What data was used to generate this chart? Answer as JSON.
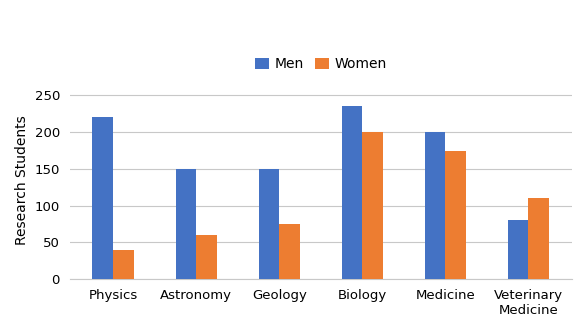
{
  "categories": [
    "Physics",
    "Astronomy",
    "Geology",
    "Biology",
    "Medicine",
    "Veterinary\nMedicine"
  ],
  "men_values": [
    220,
    150,
    150,
    235,
    200,
    80
  ],
  "women_values": [
    40,
    60,
    75,
    200,
    175,
    110
  ],
  "men_color": "#4472C4",
  "women_color": "#ED7D31",
  "ylabel": "Research Students",
  "ylim": [
    0,
    270
  ],
  "yticks": [
    0,
    50,
    100,
    150,
    200,
    250
  ],
  "legend_labels": [
    "Men",
    "Women"
  ],
  "bar_width": 0.25,
  "background_color": "#FFFFFF",
  "grid_color": "#C8C8C8",
  "ylabel_fontsize": 10,
  "tick_fontsize": 9.5,
  "legend_fontsize": 10
}
